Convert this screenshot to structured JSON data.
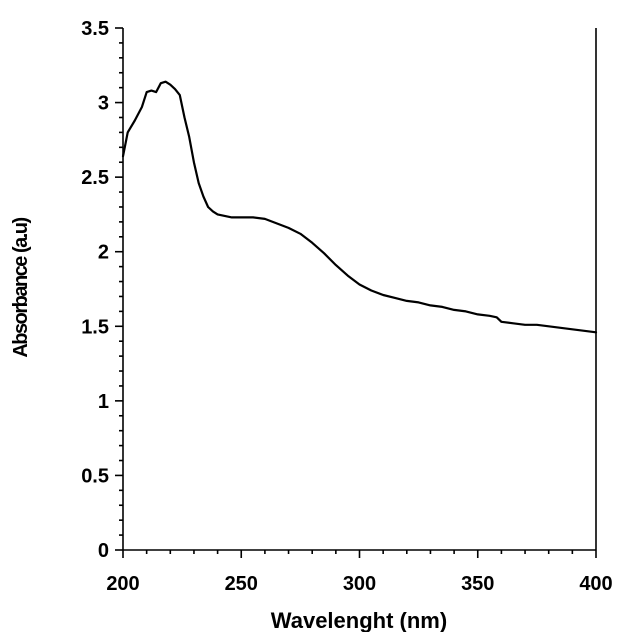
{
  "chart_data": {
    "type": "line",
    "xlabel": "Wavelenght (nm)",
    "ylabel": "Absorbance (a.u)",
    "xlim": [
      200,
      400
    ],
    "ylim": [
      0,
      3.5
    ],
    "x_ticks": [
      "200",
      "250",
      "300",
      "350",
      "400"
    ],
    "y_ticks": [
      "0",
      "0.5",
      "1",
      "1.5",
      "2",
      "2.5",
      "3",
      "3.5"
    ],
    "grid": false,
    "series": [
      {
        "x": [
          200,
          202,
          205,
          208,
          210,
          212,
          214,
          216,
          218,
          220,
          222,
          224,
          226,
          228,
          230,
          232,
          234,
          236,
          238,
          240,
          243,
          246,
          250,
          255,
          260,
          265,
          270,
          275,
          280,
          285,
          290,
          295,
          300,
          305,
          310,
          315,
          320,
          325,
          330,
          335,
          340,
          345,
          350,
          355,
          358,
          360,
          365,
          370,
          375,
          380,
          385,
          390,
          395,
          400
        ],
        "y": [
          2.64,
          2.8,
          2.88,
          2.97,
          3.07,
          3.08,
          3.07,
          3.13,
          3.14,
          3.12,
          3.09,
          3.05,
          2.9,
          2.77,
          2.6,
          2.46,
          2.37,
          2.3,
          2.27,
          2.25,
          2.24,
          2.23,
          2.23,
          2.23,
          2.22,
          2.19,
          2.16,
          2.12,
          2.06,
          1.99,
          1.91,
          1.84,
          1.78,
          1.74,
          1.71,
          1.69,
          1.67,
          1.66,
          1.64,
          1.63,
          1.61,
          1.6,
          1.58,
          1.57,
          1.56,
          1.53,
          1.52,
          1.51,
          1.51,
          1.5,
          1.49,
          1.48,
          1.47,
          1.46
        ]
      }
    ]
  }
}
